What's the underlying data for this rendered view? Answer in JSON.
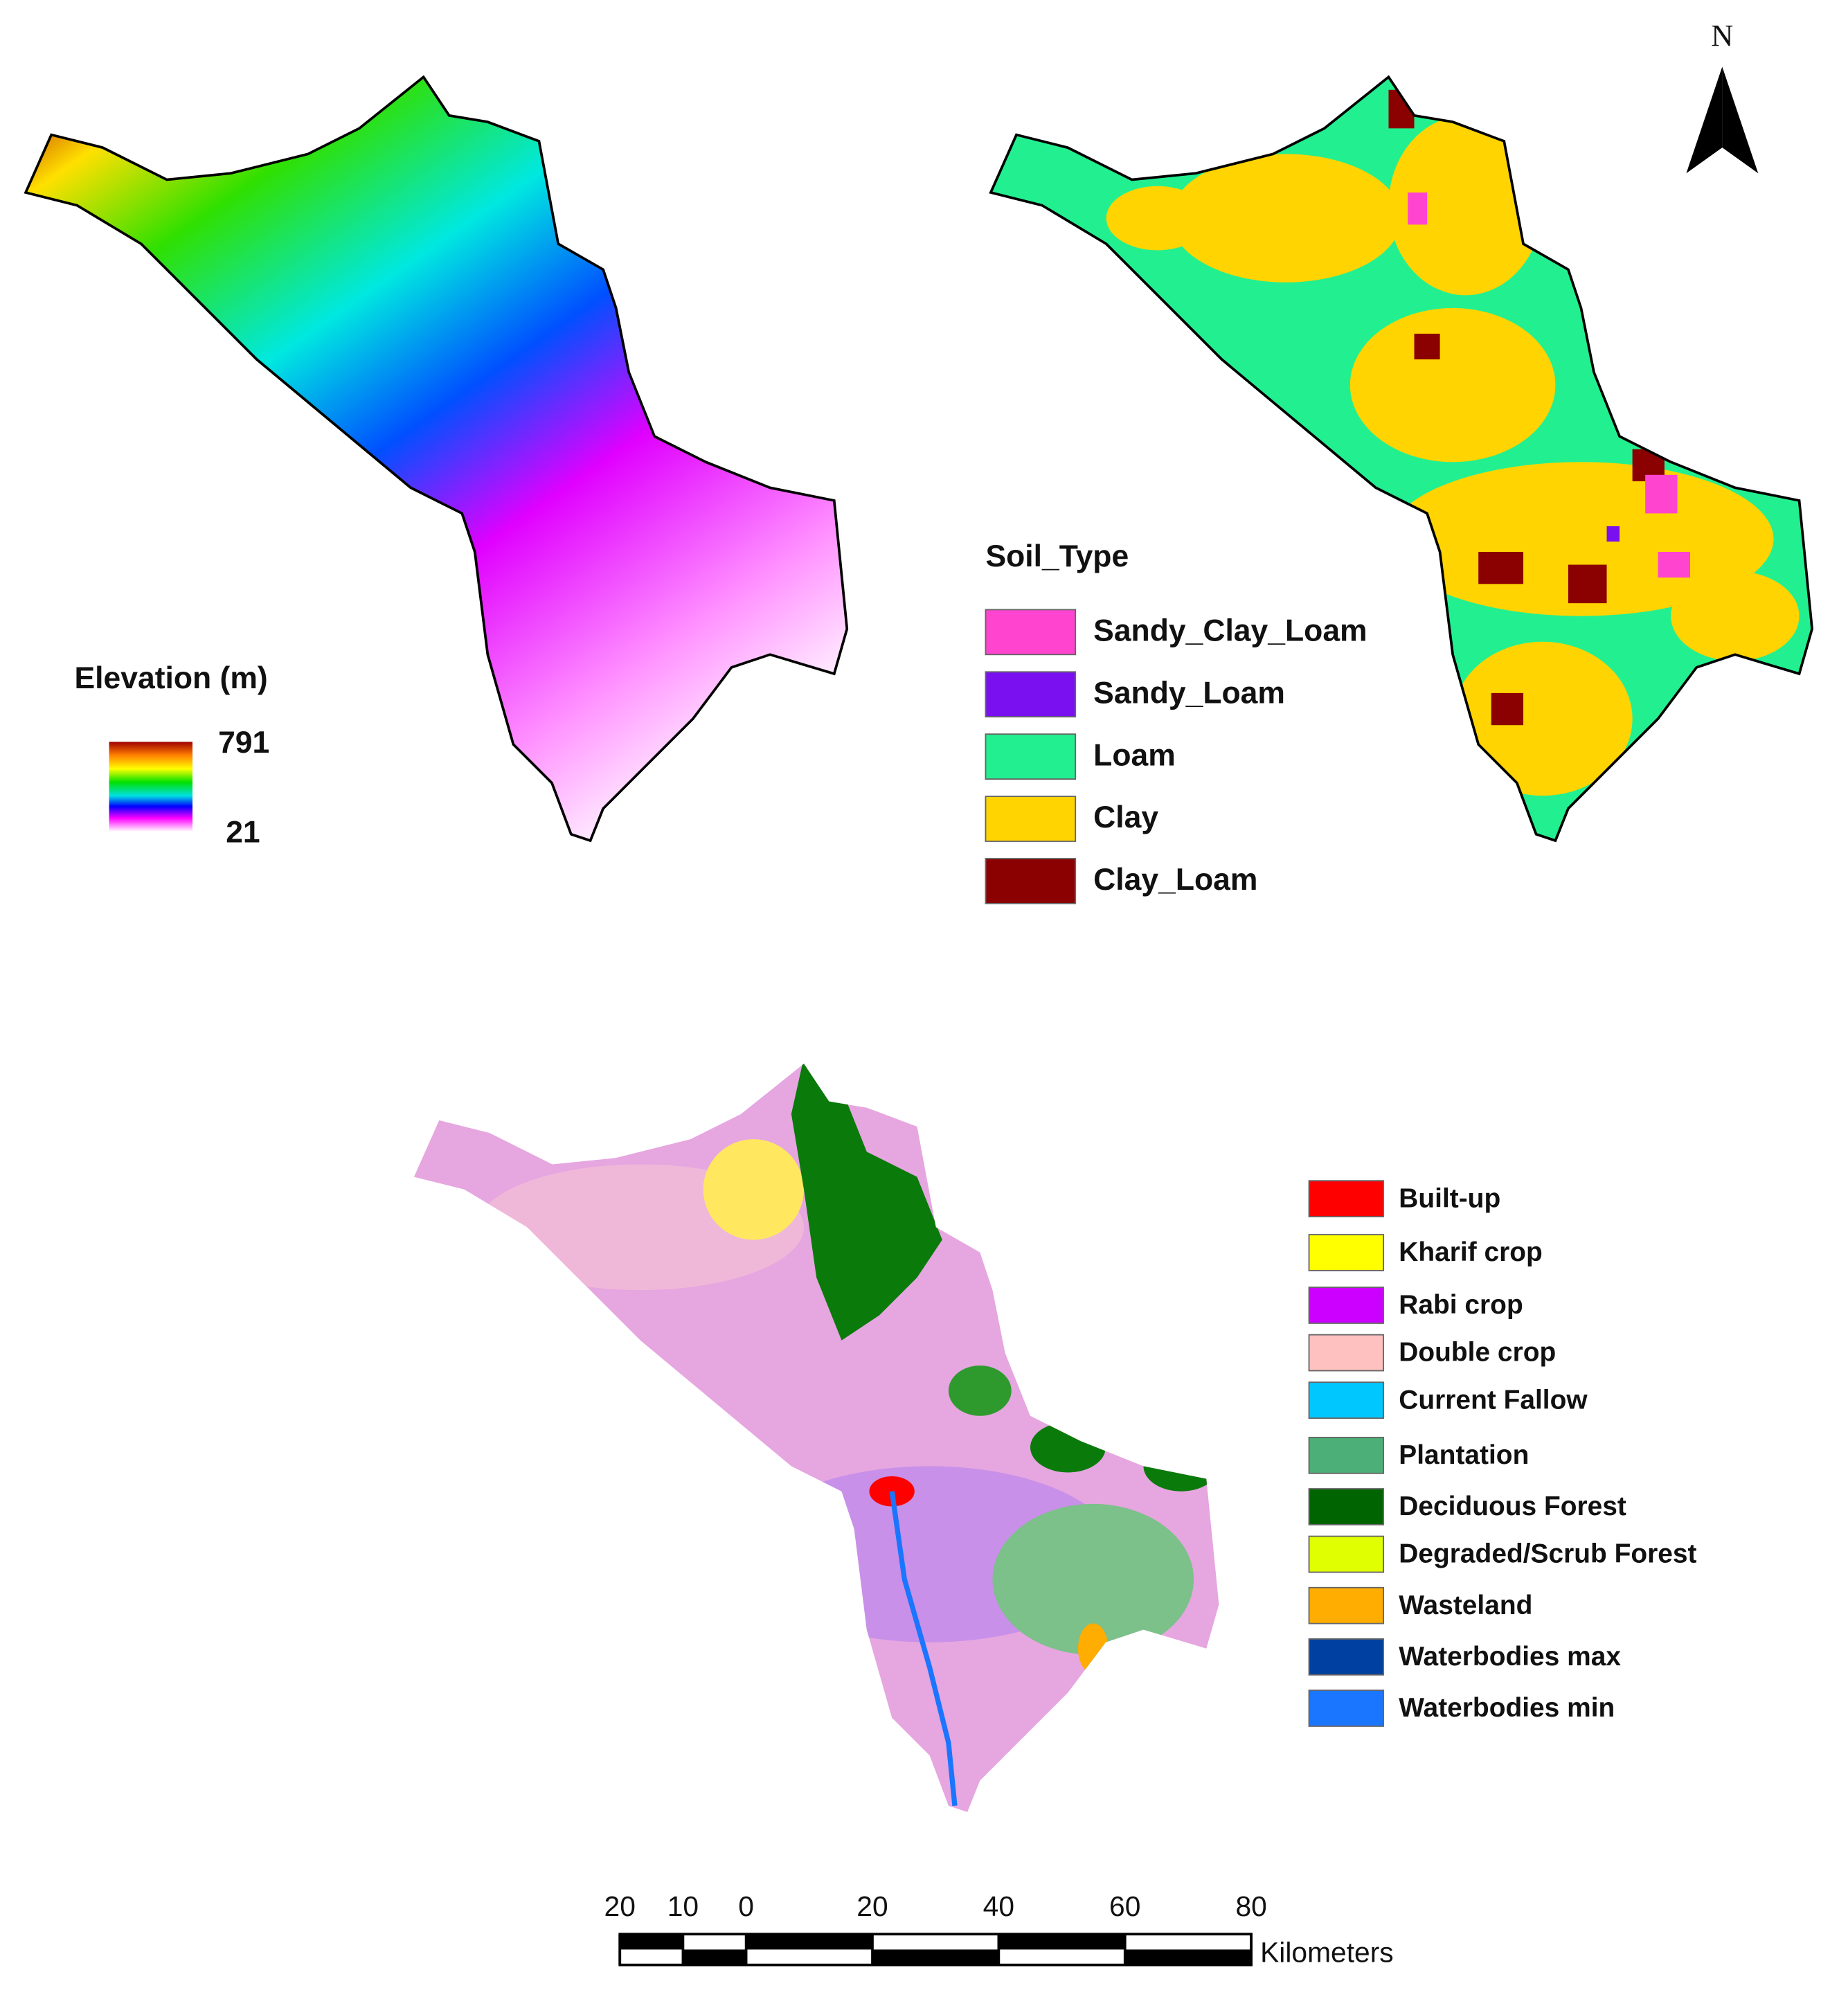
{
  "north_arrow": {
    "label": "N"
  },
  "elevation_legend": {
    "title": "Elevation (m)",
    "max": 791,
    "min": 21
  },
  "soil_legend": {
    "title": "Soil_Type",
    "items": [
      {
        "name": "Sandy_Clay_Loam",
        "color": "#ff44d0"
      },
      {
        "name": "Sandy_Loam",
        "color": "#7a10f0"
      },
      {
        "name": "Loam",
        "color": "#22f090"
      },
      {
        "name": "Clay",
        "color": "#ffd400"
      },
      {
        "name": "Clay_Loam",
        "color": "#8b0000"
      }
    ]
  },
  "landuse_legend": {
    "items": [
      {
        "name": "Built-up",
        "color": "#ff0000"
      },
      {
        "name": "Kharif crop",
        "color": "#ffff00"
      },
      {
        "name": "Rabi crop",
        "color": "#cc00ff"
      },
      {
        "name": "Double crop",
        "color": "#ffc0c0"
      },
      {
        "name": "Current Fallow",
        "color": "#00c8ff"
      },
      {
        "name": "Plantation",
        "color": "#4caf78"
      },
      {
        "name": "Deciduous Forest",
        "color": "#006400"
      },
      {
        "name": "Degraded/Scrub Forest",
        "color": "#e0ff00"
      },
      {
        "name": "Wasteland",
        "color": "#ffad00"
      },
      {
        "name": "Waterbodies max",
        "color": "#0040a0"
      },
      {
        "name": "Waterbodies min",
        "color": "#1a75ff"
      }
    ]
  },
  "scale_bar": {
    "ticks": [
      {
        "value": -20,
        "label": "20"
      },
      {
        "value": -10,
        "label": "10"
      },
      0,
      20,
      40,
      60,
      80
    ],
    "unit": "Kilometers"
  }
}
